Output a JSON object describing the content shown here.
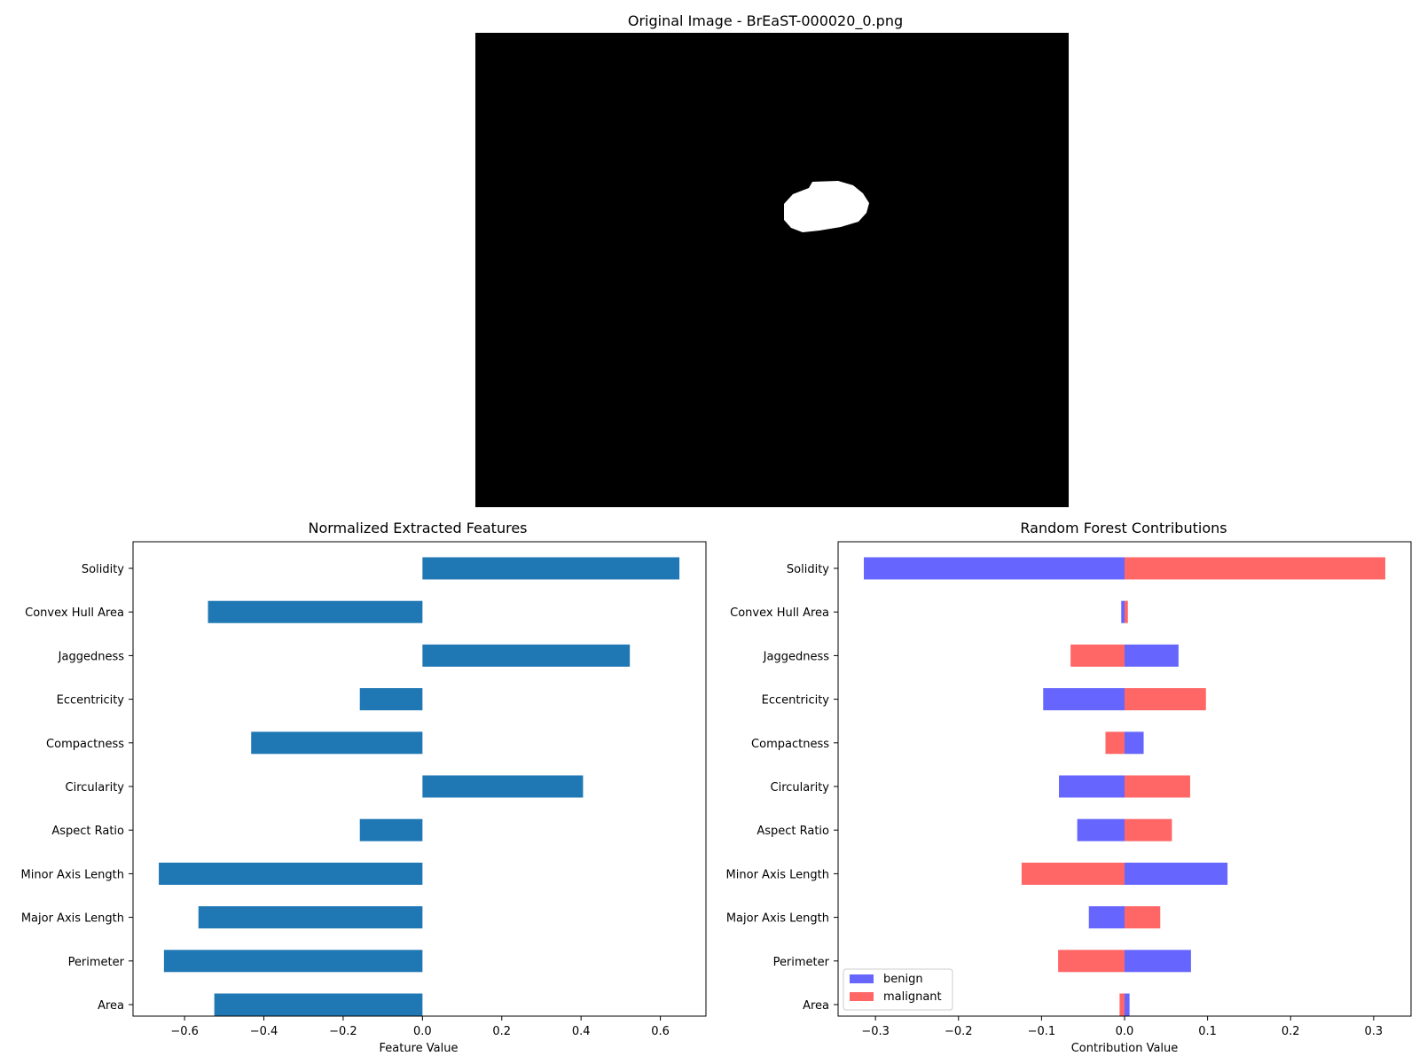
{
  "image_panel": {
    "title": "Original Image - BrEaST-000020_0.png"
  },
  "chart_data": [
    {
      "type": "bar",
      "orientation": "horizontal",
      "title": "Normalized Extracted Features",
      "xlabel": "Feature Value",
      "ylabel": "",
      "categories": [
        "Area",
        "Perimeter",
        "Major Axis Length",
        "Minor Axis Length",
        "Aspect Ratio",
        "Circularity",
        "Compactness",
        "Eccentricity",
        "Jaggedness",
        "Convex Hull Area",
        "Solidity"
      ],
      "values": [
        -0.525,
        -0.652,
        -0.565,
        -0.665,
        -0.158,
        0.405,
        -0.432,
        -0.158,
        0.523,
        -0.541,
        0.648
      ],
      "xlim": [
        -0.73,
        0.715
      ],
      "xticks": [
        "−0.6",
        "−0.4",
        "−0.2",
        "0.0",
        "0.2",
        "0.4",
        "0.6"
      ],
      "xtick_values": [
        -0.6,
        -0.4,
        -0.2,
        0.0,
        0.2,
        0.4,
        0.6
      ],
      "color": "#1f77b4",
      "grid": false
    },
    {
      "type": "bar",
      "orientation": "horizontal",
      "title": "Random Forest Contributions",
      "xlabel": "Contribution Value",
      "ylabel": "",
      "categories": [
        "Area",
        "Perimeter",
        "Major Axis Length",
        "Minor Axis Length",
        "Aspect Ratio",
        "Circularity",
        "Compactness",
        "Eccentricity",
        "Jaggedness",
        "Convex Hull Area",
        "Solidity"
      ],
      "series": [
        {
          "name": "benign",
          "color": "#6666ff",
          "values": [
            0.006,
            0.08,
            -0.043,
            0.124,
            -0.057,
            -0.079,
            0.023,
            -0.098,
            0.065,
            -0.004,
            -0.314
          ]
        },
        {
          "name": "malignant",
          "color": "#ff6666",
          "values": [
            -0.006,
            -0.08,
            0.043,
            -0.124,
            0.057,
            0.079,
            -0.023,
            0.098,
            -0.065,
            0.004,
            0.314
          ]
        }
      ],
      "xlim": [
        -0.345,
        0.345
      ],
      "xticks": [
        "−0.3",
        "−0.2",
        "−0.1",
        "0.0",
        "0.1",
        "0.2",
        "0.3"
      ],
      "xtick_values": [
        -0.3,
        -0.2,
        -0.1,
        0.0,
        0.1,
        0.2,
        0.3
      ],
      "legend": "lower-left",
      "grid": false
    }
  ]
}
